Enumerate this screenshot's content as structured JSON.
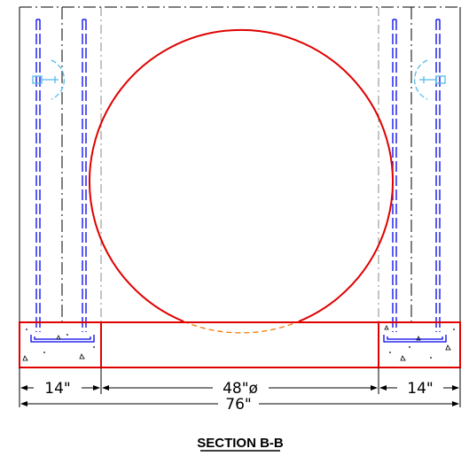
{
  "drawing": {
    "section_title": "SECTION B-B",
    "dimensions": {
      "left_footing": "14\"",
      "pipe_diameter": "48\"ø",
      "right_footing": "14\"",
      "overall_width": "76\""
    }
  },
  "colors": {
    "pipe_and_slab": "#e00000",
    "rebar": "#0000ee",
    "hidden_pipe": "#f07800",
    "hardware": "#55bbe8",
    "lines": "#000000"
  }
}
